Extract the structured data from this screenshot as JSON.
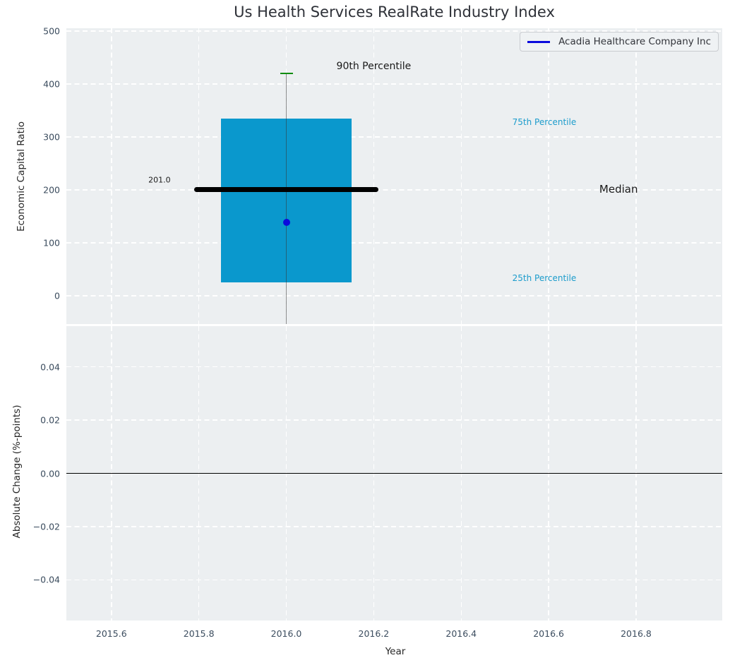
{
  "figure": {
    "title": "Us Health Services RealRate Industry Index"
  },
  "legend": {
    "label": "Acadia Healthcare Company Inc",
    "line_color": "#0b0bdd"
  },
  "colors": {
    "plot_background": "#eceff1",
    "grid": "#ffffff",
    "tick_text": "#3b4c5e",
    "box_fill": "#0a98cd",
    "median": "#000000",
    "whisker": "#4a4a4a",
    "cap_90th": "#0f8c0f",
    "series_blue": "#0b0bdd",
    "percentile_text": "#1c9ccc"
  },
  "chart_data": [
    {
      "type": "boxplot",
      "panel": "top",
      "title": "Us Health Services RealRate Industry Index",
      "ylabel": "Economic Capital Ratio",
      "xlim": [
        2015.497,
        2016.997
      ],
      "ylim": [
        -53,
        505
      ],
      "grid": true,
      "legend_position": "upper right",
      "xticks": {
        "values": [
          2015.6,
          2015.8,
          2016.0,
          2016.2,
          2016.4,
          2016.6,
          2016.8
        ],
        "labels": [
          "2015.6",
          "2015.8",
          "2016.0",
          "2016.2",
          "2016.4",
          "2016.6",
          "2016.8"
        ],
        "show_labels": false
      },
      "yticks": {
        "values": [
          500,
          400,
          300,
          200,
          100,
          0
        ],
        "labels": [
          "500",
          "400",
          "300",
          "200",
          "100",
          "0"
        ]
      },
      "box": {
        "x": 2016.0,
        "box_halfwidth": 0.15,
        "median_halfwidth": 0.21,
        "p25": 25,
        "median": 201.0,
        "p75": 335,
        "p90": 420,
        "whisker_clipped_at_bottom": true
      },
      "median_value_label": "201.0",
      "series": [
        {
          "name": "Acadia Healthcare Company Inc",
          "type": "scatter",
          "x": [
            2016.0
          ],
          "y": [
            139
          ]
        }
      ],
      "annotations": [
        {
          "text": "90th Percentile",
          "x": 2016.2,
          "y": 433,
          "color": "#1a1a1a",
          "size": 14
        },
        {
          "text": "75th Percentile",
          "x": 2016.59,
          "y": 328,
          "color": "#1c9ccc",
          "size": 12
        },
        {
          "text": "Median",
          "x": 2016.76,
          "y": 201,
          "color": "#1a1a1a",
          "size": 15
        },
        {
          "text": "25th Percentile",
          "x": 2016.59,
          "y": 34,
          "color": "#1c9ccc",
          "size": 12
        },
        {
          "text": "201.0",
          "x": 2015.71,
          "y": 219,
          "color": "#1a1a1a",
          "size": 11
        }
      ]
    },
    {
      "type": "line",
      "panel": "bottom",
      "xlabel": "Year",
      "ylabel": "Absolute Change (%-points)",
      "xlim": [
        2015.497,
        2016.997
      ],
      "ylim": [
        -0.0553,
        0.0553
      ],
      "grid": true,
      "xticks": {
        "values": [
          2015.6,
          2015.8,
          2016.0,
          2016.2,
          2016.4,
          2016.6,
          2016.8
        ],
        "labels": [
          "2015.6",
          "2015.8",
          "2016.0",
          "2016.2",
          "2016.4",
          "2016.6",
          "2016.8"
        ],
        "show_labels": true
      },
      "yticks": {
        "values": [
          0.04,
          0.02,
          0.0,
          -0.02,
          -0.04
        ],
        "labels": [
          "0.04",
          "0.02",
          "0.00",
          "−0.02",
          "−0.04"
        ]
      },
      "zero_line": {
        "y": 0.0
      }
    }
  ]
}
